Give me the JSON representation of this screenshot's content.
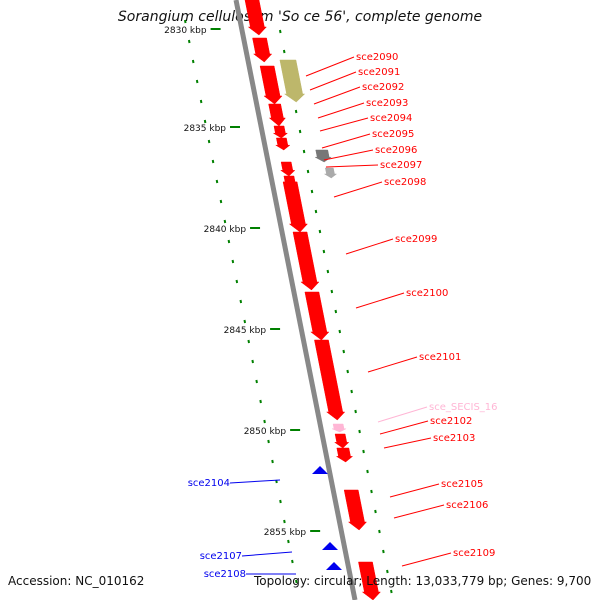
{
  "title": "Sorangium cellulosum 'So ce 56', complete genome",
  "footer": {
    "accession": "Accession: NC_010162",
    "topology": "Topology: circular; Length: 13,033,779 bp; Genes: 9,700"
  },
  "ticks": [
    {
      "kbp": 2830,
      "label": "2830 kbp"
    },
    {
      "kbp": 2835,
      "label": "2835 kbp"
    },
    {
      "kbp": 2840,
      "label": "2840 kbp"
    },
    {
      "kbp": 2845,
      "label": "2845 kbp"
    },
    {
      "kbp": 2850,
      "label": "2850 kbp"
    },
    {
      "kbp": 2855,
      "label": "2855 kbp"
    }
  ],
  "colors": {
    "gene": "#ff0000",
    "gene_reverse": "#0000ee",
    "rna": "#ffb6d5",
    "pseudo": "#bdb76b",
    "misc": "#777777",
    "tick": "#008000",
    "backbone": "#888888"
  },
  "genes": [
    {
      "label": "sce2090",
      "strand": "forward",
      "type": "cds"
    },
    {
      "label": "sce2091",
      "strand": "forward",
      "type": "pseudo"
    },
    {
      "label": "sce2092",
      "strand": "forward",
      "type": "cds"
    },
    {
      "label": "sce2093",
      "strand": "forward",
      "type": "cds"
    },
    {
      "label": "sce2094",
      "strand": "forward",
      "type": "cds"
    },
    {
      "label": "sce2095",
      "strand": "forward",
      "type": "cds"
    },
    {
      "label": "sce2096",
      "strand": "forward",
      "type": "misc"
    },
    {
      "label": "sce2097",
      "strand": "forward",
      "type": "cds"
    },
    {
      "label": "sce2098",
      "strand": "forward",
      "type": "cds"
    },
    {
      "label": "sce2099",
      "strand": "forward",
      "type": "cds"
    },
    {
      "label": "sce2100",
      "strand": "forward",
      "type": "cds"
    },
    {
      "label": "sce2101",
      "strand": "forward",
      "type": "cds"
    },
    {
      "label": "sce_SECIS_16",
      "strand": "forward",
      "type": "rna"
    },
    {
      "label": "sce2102",
      "strand": "forward",
      "type": "cds"
    },
    {
      "label": "sce2103",
      "strand": "forward",
      "type": "cds"
    },
    {
      "label": "sce2104",
      "strand": "reverse",
      "type": "cds"
    },
    {
      "label": "sce2105",
      "strand": "forward",
      "type": "cds"
    },
    {
      "label": "sce2106",
      "strand": "forward",
      "type": "cds"
    },
    {
      "label": "sce2107",
      "strand": "reverse",
      "type": "cds"
    },
    {
      "label": "sce2108",
      "strand": "reverse",
      "type": "cds"
    },
    {
      "label": "sce2109",
      "strand": "forward",
      "type": "cds"
    }
  ]
}
